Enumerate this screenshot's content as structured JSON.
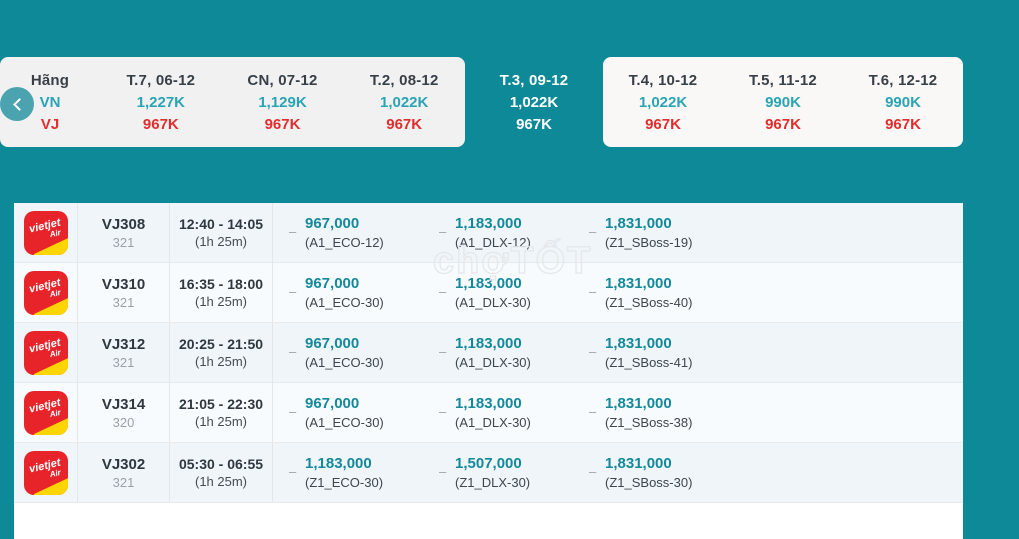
{
  "colors": {
    "page_bg": "#0E8997",
    "vn_price": "#2AA4B5",
    "vj_price": "#E12D2D",
    "fare_price": "#13899B",
    "card_left_bg": "#F1F1F2",
    "card_right_bg": "#F9F8F6",
    "selected_tab_bg": "#0E8997"
  },
  "date_bar": {
    "airline_col": {
      "header": "Hãng",
      "vn": "VN",
      "vj": "VJ"
    },
    "days": [
      {
        "date": "T.7, 06-12",
        "vn": "1,227K",
        "vj": "967K",
        "selected": false
      },
      {
        "date": "CN, 07-12",
        "vn": "1,129K",
        "vj": "967K",
        "selected": false
      },
      {
        "date": "T.2, 08-12",
        "vn": "1,022K",
        "vj": "967K",
        "selected": false
      },
      {
        "date": "T.3, 09-12",
        "vn": "1,022K",
        "vj": "967K",
        "selected": true
      },
      {
        "date": "T.4, 10-12",
        "vn": "1,022K",
        "vj": "967K",
        "selected": false
      },
      {
        "date": "T.5, 11-12",
        "vn": "990K",
        "vj": "967K",
        "selected": false
      },
      {
        "date": "T.6, 12-12",
        "vn": "990K",
        "vj": "967K",
        "selected": false
      }
    ]
  },
  "fare_dash": "–",
  "logo": {
    "word": "vietjet",
    "air": "Air"
  },
  "watermark": {
    "text": "chợTỐT"
  },
  "flights": [
    {
      "flight": "VJ308",
      "aircraft": "321",
      "time": "12:40 - 14:05",
      "duration": "(1h 25m)",
      "fares": [
        {
          "price": "967,000",
          "cls": "(A1_ECO-12)"
        },
        {
          "price": "1,183,000",
          "cls": "(A1_DLX-12)"
        },
        {
          "price": "1,831,000",
          "cls": "(Z1_SBoss-19)"
        }
      ]
    },
    {
      "flight": "VJ310",
      "aircraft": "321",
      "time": "16:35 - 18:00",
      "duration": "(1h 25m)",
      "fares": [
        {
          "price": "967,000",
          "cls": "(A1_ECO-30)"
        },
        {
          "price": "1,183,000",
          "cls": "(A1_DLX-30)"
        },
        {
          "price": "1,831,000",
          "cls": "(Z1_SBoss-40)"
        }
      ]
    },
    {
      "flight": "VJ312",
      "aircraft": "321",
      "time": "20:25 - 21:50",
      "duration": "(1h 25m)",
      "fares": [
        {
          "price": "967,000",
          "cls": "(A1_ECO-30)"
        },
        {
          "price": "1,183,000",
          "cls": "(A1_DLX-30)"
        },
        {
          "price": "1,831,000",
          "cls": "(Z1_SBoss-41)"
        }
      ]
    },
    {
      "flight": "VJ314",
      "aircraft": "320",
      "time": "21:05 - 22:30",
      "duration": "(1h 25m)",
      "fares": [
        {
          "price": "967,000",
          "cls": "(A1_ECO-30)"
        },
        {
          "price": "1,183,000",
          "cls": "(A1_DLX-30)"
        },
        {
          "price": "1,831,000",
          "cls": "(Z1_SBoss-38)"
        }
      ]
    },
    {
      "flight": "VJ302",
      "aircraft": "321",
      "time": "05:30 - 06:55",
      "duration": "(1h 25m)",
      "fares": [
        {
          "price": "1,183,000",
          "cls": "(Z1_ECO-30)"
        },
        {
          "price": "1,507,000",
          "cls": "(Z1_DLX-30)"
        },
        {
          "price": "1,831,000",
          "cls": "(Z1_SBoss-30)"
        }
      ]
    }
  ]
}
